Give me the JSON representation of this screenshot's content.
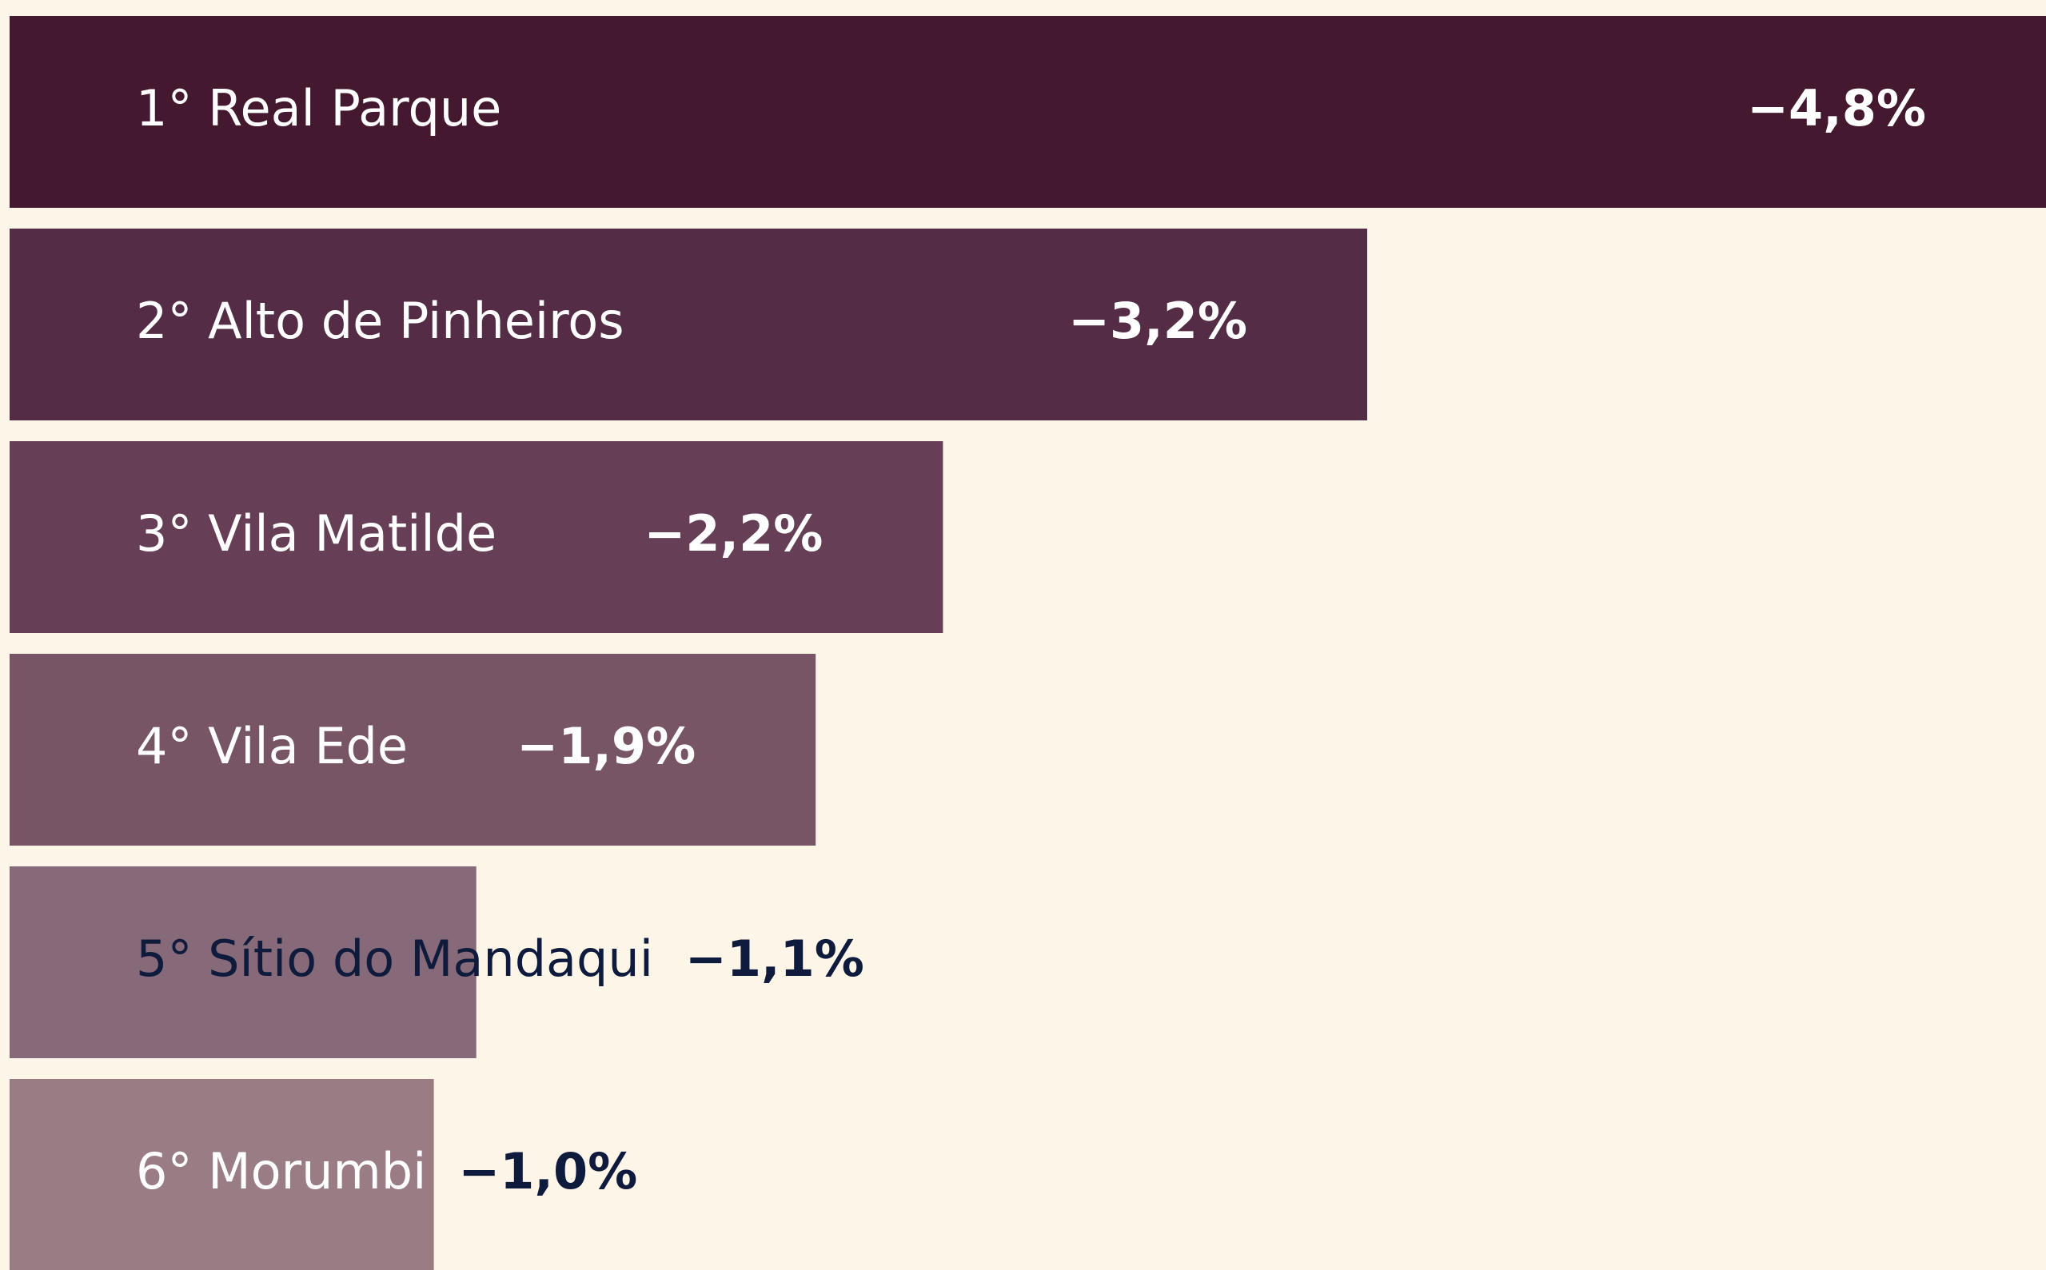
{
  "chart_data": {
    "type": "bar",
    "orientation": "horizontal",
    "categories": [
      "1° Real Parque",
      "2° Alto de Pinheiros",
      "3° Vila Matilde",
      "4° Vila Ede",
      "5° Sítio do Mandaqui",
      "6° Morumbi"
    ],
    "values": [
      -4.8,
      -3.2,
      -2.2,
      -1.9,
      -1.1,
      -1.0
    ],
    "value_labels": [
      "−4,8%",
      "−3,2%",
      "−2,2%",
      "−1,9%",
      "−1,1%",
      "−1,0%"
    ],
    "colors": [
      "#44182f",
      "#552c45",
      "#663e55",
      "#785565",
      "#876a79",
      "#9a7d84"
    ],
    "xlim": [
      0,
      -4.8
    ]
  }
}
